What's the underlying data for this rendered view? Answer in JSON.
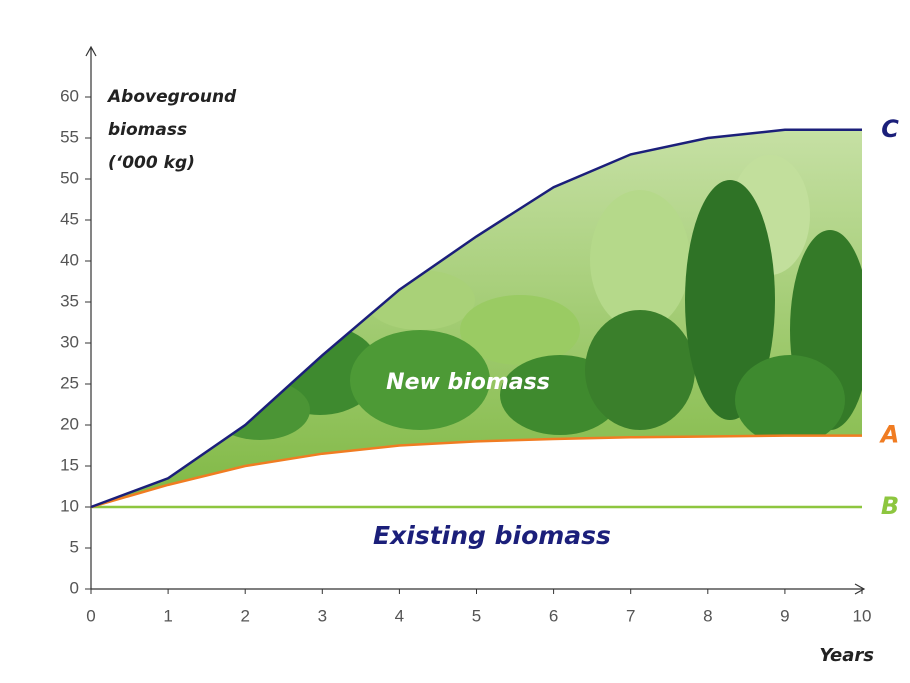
{
  "chart_data": {
    "type": "line",
    "y_label": [
      "Aboveground",
      "biomass",
      "(‘000 kg)"
    ],
    "x_label": "Years",
    "annotations": [
      "New biomass",
      "Existing biomass"
    ],
    "x": [
      0,
      1,
      2,
      3,
      4,
      5,
      6,
      7,
      8,
      9,
      10
    ],
    "series": [
      {
        "name": "C",
        "color": "#1b1f7a",
        "values": [
          10,
          13.5,
          20,
          28.5,
          36.5,
          43,
          49,
          53,
          55,
          56,
          56
        ]
      },
      {
        "name": "A",
        "color": "#f07c22",
        "values": [
          10,
          12.7,
          15,
          16.5,
          17.5,
          18,
          18.3,
          18.5,
          18.6,
          18.7,
          18.7
        ]
      },
      {
        "name": "B",
        "color": "#8dc63f",
        "values": [
          10,
          10,
          10,
          10,
          10,
          10,
          10,
          10,
          10,
          10,
          10
        ]
      }
    ],
    "xlim": [
      0,
      10
    ],
    "xticks": [
      0,
      1,
      2,
      3,
      4,
      5,
      6,
      7,
      8,
      9,
      10
    ],
    "ylim": [
      0,
      60
    ],
    "yticks": [
      0,
      5,
      10,
      15,
      20,
      25,
      30,
      35,
      40,
      45,
      50,
      55,
      60
    ]
  }
}
